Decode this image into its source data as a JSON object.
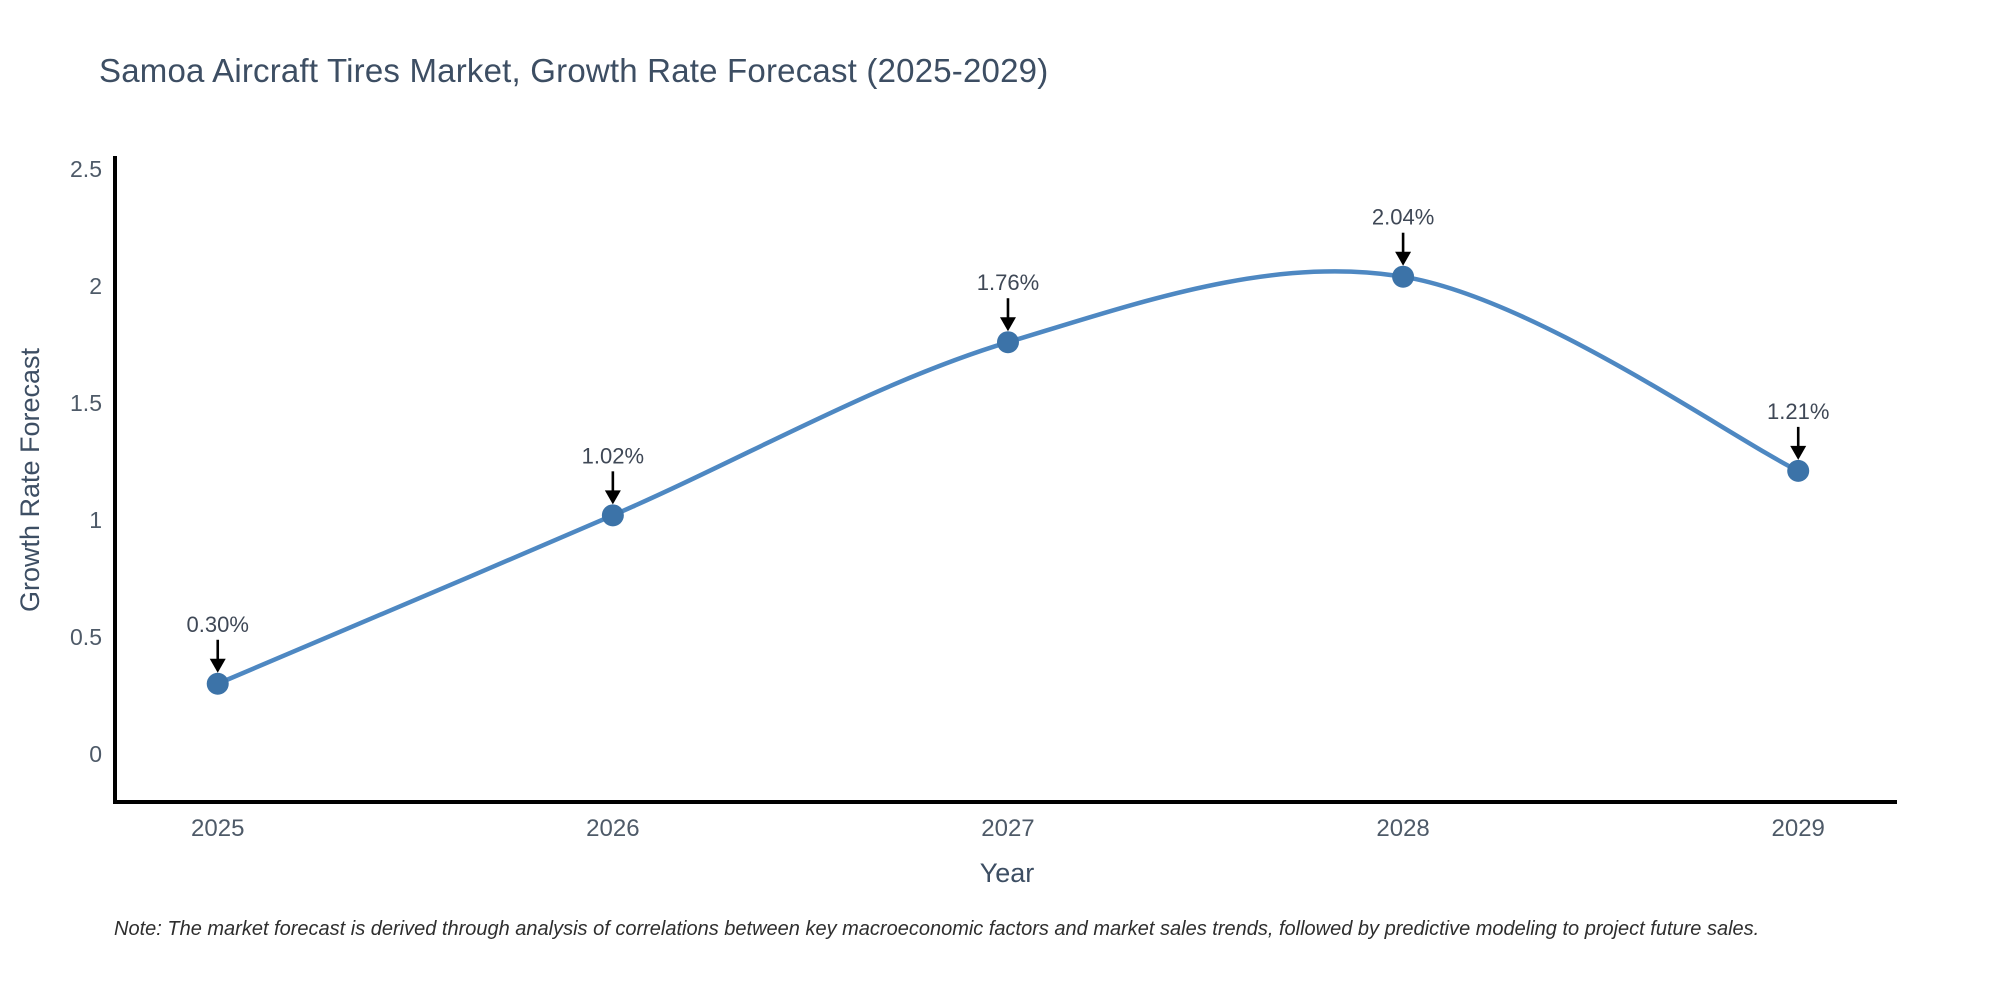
{
  "header": {
    "title": "Samoa Aircraft Tires Market, Growth Rate Forecast (2025-2029)"
  },
  "chart_data": {
    "type": "line",
    "title": "Samoa Aircraft Tires Market, Growth Rate Forecast (2025-2029)",
    "categories": [
      "2025",
      "2026",
      "2027",
      "2028",
      "2029"
    ],
    "x": [
      2025,
      2026,
      2027,
      2028,
      2029
    ],
    "values": [
      0.3,
      1.02,
      1.76,
      2.04,
      1.21
    ],
    "point_labels": [
      "0.30%",
      "1.02%",
      "1.76%",
      "2.04%",
      "1.21%"
    ],
    "xlabel": "Year",
    "ylabel": "Growth Rate Forecast",
    "xlim": [
      2024.74,
      2029.25
    ],
    "ylim": [
      -0.214,
      2.556
    ],
    "yticks": [
      0,
      0.5,
      1,
      1.5,
      2,
      2.5
    ],
    "ytick_labels": [
      "0",
      "0.5",
      "1",
      "1.5",
      "2",
      "2.5"
    ],
    "grid": false,
    "legend": "none",
    "line_shape": "spline",
    "marker": "circle",
    "annotation_arrows": true,
    "colors": {
      "line": "#4e88c2",
      "marker": "#3c73a8",
      "axis": "#000000",
      "arrow": "#000000",
      "annotation_text": "#3f4856",
      "tick_text": "#4e5a68",
      "title_text": "#3d4e63"
    }
  },
  "note": {
    "text": "Note: The market forecast is derived through analysis of correlations between key macroeconomic factors and market sales trends, followed by predictive modeling to project future sales."
  }
}
